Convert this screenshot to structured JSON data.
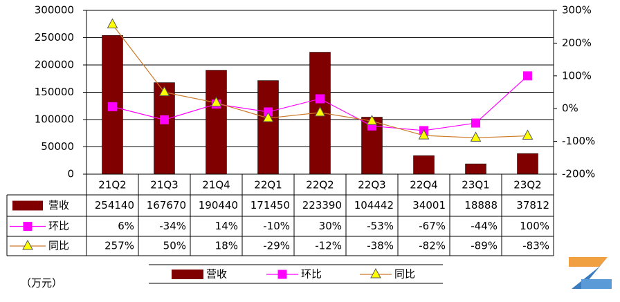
{
  "chart_data": {
    "type": "combo",
    "unit": "（万元）",
    "categories": [
      "21Q2",
      "21Q3",
      "21Q4",
      "22Q1",
      "22Q2",
      "22Q3",
      "22Q4",
      "23Q1",
      "23Q2"
    ],
    "series": [
      {
        "name": "营收",
        "type": "bar",
        "color": "#800000",
        "values": [
          254140,
          167670,
          190440,
          171450,
          223390,
          104442,
          34001,
          18888,
          37812
        ]
      },
      {
        "name": "环比",
        "type": "line",
        "marker": "square",
        "axis": "y2",
        "color": "#ff00ff",
        "marker_color": "#ff00ff",
        "values": [
          6,
          -34,
          14,
          -10,
          30,
          -53,
          -67,
          -44,
          100
        ],
        "value_labels": [
          "6%",
          "-34%",
          "14%",
          "-10%",
          "30%",
          "-53%",
          "-67%",
          "-44%",
          "100%"
        ]
      },
      {
        "name": "同比",
        "type": "line",
        "marker": "triangle",
        "axis": "y2",
        "color": "#cc7a29",
        "marker_color": "#ffff00",
        "values": [
          257,
          50,
          18,
          -29,
          -12,
          -38,
          -82,
          -89,
          -83
        ],
        "value_labels": [
          "257%",
          "50%",
          "18%",
          "-29%",
          "-12%",
          "-38%",
          "-82%",
          "-89%",
          "-83%"
        ]
      }
    ],
    "ylim": [
      0,
      300000
    ],
    "yticks": [
      0,
      50000,
      100000,
      150000,
      200000,
      250000,
      300000
    ],
    "y2lim": [
      -200,
      300
    ],
    "y2ticks": [
      {
        "value": -200,
        "label": "-200%"
      },
      {
        "value": -100,
        "label": "-100%"
      },
      {
        "value": 0,
        "label": "0%"
      },
      {
        "value": 100,
        "label": "100%"
      },
      {
        "value": 200,
        "label": "200%"
      },
      {
        "value": 300,
        "label": "300%"
      }
    ],
    "grid": true
  }
}
